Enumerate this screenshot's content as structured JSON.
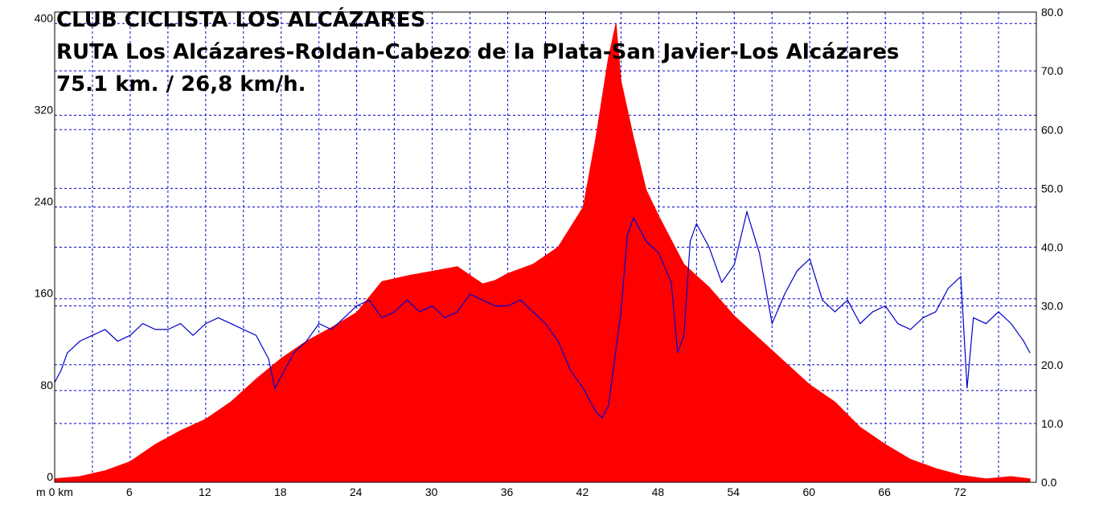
{
  "chart_data": {
    "type": "area",
    "title_lines": [
      "CLUB CICLISTA LOS ALCÁZARES",
      "RUTA Los Alcázares-Roldan-Cabezo de la Plata-San Javier-Los Alcázares",
      "75.1 km. / 26,8 km/h."
    ],
    "xlim": [
      0,
      78
    ],
    "x_ticks": [
      0,
      6,
      12,
      18,
      24,
      30,
      36,
      42,
      48,
      54,
      60,
      66,
      72
    ],
    "x_tick_labels": [
      "m 0 km",
      "6",
      "12",
      "18",
      "24",
      "30",
      "36",
      "42",
      "48",
      "54",
      "60",
      "66",
      "72"
    ],
    "y_left": {
      "ylim": [
        0,
        410
      ],
      "ticks": [
        0,
        80,
        160,
        240,
        320,
        400
      ],
      "tick_labels": [
        "0",
        "80",
        "160",
        "240",
        "320",
        "400"
      ]
    },
    "y_right": {
      "ylim": [
        0,
        80.0
      ],
      "ticks": [
        0,
        10,
        20,
        30,
        40,
        50,
        60,
        70,
        80
      ],
      "tick_labels": [
        "0.0",
        "10.0",
        "20.0",
        "30.0",
        "40.0",
        "50.0",
        "60.0",
        "70.0",
        "80.0"
      ]
    },
    "grid": true,
    "series": [
      {
        "axis": "left",
        "color": "#ff0000",
        "points": [
          [
            0,
            3
          ],
          [
            2,
            5
          ],
          [
            4,
            10
          ],
          [
            6,
            18
          ],
          [
            8,
            33
          ],
          [
            10,
            45
          ],
          [
            12,
            55
          ],
          [
            14,
            70
          ],
          [
            16,
            90
          ],
          [
            18,
            108
          ],
          [
            20,
            123
          ],
          [
            22,
            135
          ],
          [
            24,
            148
          ],
          [
            26,
            175
          ],
          [
            28,
            180
          ],
          [
            30,
            184
          ],
          [
            32,
            188
          ],
          [
            34,
            173
          ],
          [
            35,
            176
          ],
          [
            36,
            182
          ],
          [
            38,
            190
          ],
          [
            40,
            205
          ],
          [
            42,
            240
          ],
          [
            43,
            300
          ],
          [
            44,
            370
          ],
          [
            44.6,
            400
          ],
          [
            45,
            350
          ],
          [
            46,
            300
          ],
          [
            47,
            255
          ],
          [
            48,
            232
          ],
          [
            50,
            190
          ],
          [
            52,
            170
          ],
          [
            54,
            145
          ],
          [
            56,
            125
          ],
          [
            58,
            105
          ],
          [
            60,
            85
          ],
          [
            62,
            70
          ],
          [
            64,
            48
          ],
          [
            66,
            33
          ],
          [
            68,
            20
          ],
          [
            70,
            12
          ],
          [
            72,
            6
          ],
          [
            74,
            3
          ],
          [
            76,
            5
          ],
          [
            77.5,
            3
          ]
        ]
      },
      {
        "axis": "right",
        "color": "#0000cc",
        "points": [
          [
            0,
            17
          ],
          [
            0.5,
            19
          ],
          [
            1,
            22
          ],
          [
            2,
            24
          ],
          [
            3,
            25
          ],
          [
            4,
            26
          ],
          [
            5,
            24
          ],
          [
            6,
            25
          ],
          [
            7,
            27
          ],
          [
            8,
            26
          ],
          [
            9,
            26
          ],
          [
            10,
            27
          ],
          [
            11,
            25
          ],
          [
            12,
            27
          ],
          [
            13,
            28
          ],
          [
            14,
            27
          ],
          [
            15,
            26
          ],
          [
            16,
            25
          ],
          [
            17,
            21
          ],
          [
            17.5,
            16
          ],
          [
            18,
            18
          ],
          [
            19,
            22
          ],
          [
            20,
            24
          ],
          [
            21,
            27
          ],
          [
            22,
            26
          ],
          [
            23,
            28
          ],
          [
            24,
            30
          ],
          [
            25,
            31
          ],
          [
            26,
            28
          ],
          [
            27,
            29
          ],
          [
            28,
            31
          ],
          [
            29,
            29
          ],
          [
            30,
            30
          ],
          [
            31,
            28
          ],
          [
            32,
            29
          ],
          [
            33,
            32
          ],
          [
            34,
            31
          ],
          [
            35,
            30
          ],
          [
            36,
            30
          ],
          [
            37,
            31
          ],
          [
            38,
            29
          ],
          [
            39,
            27
          ],
          [
            40,
            24
          ],
          [
            41,
            19
          ],
          [
            42,
            16
          ],
          [
            43,
            12
          ],
          [
            43.5,
            11
          ],
          [
            44,
            13
          ],
          [
            45,
            29
          ],
          [
            45.5,
            42
          ],
          [
            46,
            45
          ],
          [
            47,
            41
          ],
          [
            48,
            39
          ],
          [
            49,
            34
          ],
          [
            49.5,
            22
          ],
          [
            50,
            25
          ],
          [
            50.5,
            41
          ],
          [
            51,
            44
          ],
          [
            52,
            40
          ],
          [
            53,
            34
          ],
          [
            54,
            37
          ],
          [
            55,
            46
          ],
          [
            56,
            39
          ],
          [
            57,
            27
          ],
          [
            58,
            32
          ],
          [
            59,
            36
          ],
          [
            60,
            38
          ],
          [
            61,
            31
          ],
          [
            62,
            29
          ],
          [
            63,
            31
          ],
          [
            64,
            27
          ],
          [
            65,
            29
          ],
          [
            66,
            30
          ],
          [
            67,
            27
          ],
          [
            68,
            26
          ],
          [
            69,
            28
          ],
          [
            70,
            29
          ],
          [
            71,
            33
          ],
          [
            72,
            35
          ],
          [
            72.5,
            16
          ],
          [
            73,
            28
          ],
          [
            74,
            27
          ],
          [
            75,
            29
          ],
          [
            76,
            27
          ],
          [
            77,
            24
          ],
          [
            77.5,
            22
          ]
        ]
      }
    ]
  }
}
